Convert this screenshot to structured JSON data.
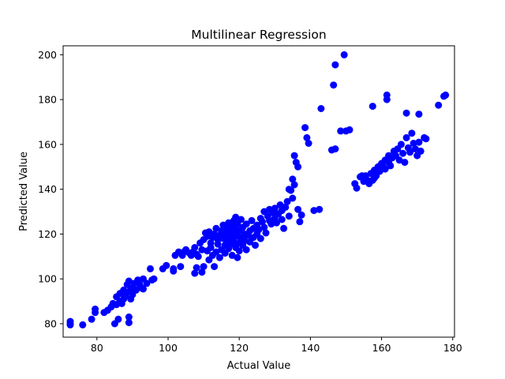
{
  "chart_data": {
    "type": "scatter",
    "title": "Multilinear Regression",
    "xlabel": "Actual Value",
    "ylabel": "Predicted Value",
    "xlim": [
      70.5,
      180.5
    ],
    "ylim": [
      74,
      204
    ],
    "xticks": [
      80,
      100,
      120,
      140,
      160,
      180
    ],
    "yticks": [
      80,
      100,
      120,
      140,
      160,
      180,
      200
    ],
    "grid": false,
    "legend": "none",
    "marker_color": "#0000ff",
    "series": [
      {
        "points": [
          [
            72.5,
            80
          ],
          [
            72.5,
            81
          ],
          [
            72.5,
            79.5
          ],
          [
            76,
            79.5
          ],
          [
            78.5,
            82
          ],
          [
            79.5,
            85
          ],
          [
            79.5,
            86.5
          ],
          [
            82,
            85
          ],
          [
            83,
            86
          ],
          [
            84,
            87.5
          ],
          [
            84.5,
            89
          ],
          [
            85,
            80
          ],
          [
            85.5,
            88.5
          ],
          [
            85.5,
            92
          ],
          [
            86,
            82
          ],
          [
            86.5,
            90
          ],
          [
            86.5,
            93.5
          ],
          [
            87,
            89
          ],
          [
            87.5,
            91
          ],
          [
            87.5,
            95
          ],
          [
            88,
            92.5
          ],
          [
            88.5,
            94
          ],
          [
            88.5,
            97.5
          ],
          [
            89,
            83
          ],
          [
            89,
            80.5
          ],
          [
            89,
            99
          ],
          [
            89.5,
            95.5
          ],
          [
            89.5,
            91
          ],
          [
            90,
            96
          ],
          [
            90,
            93
          ],
          [
            90.5,
            98
          ],
          [
            91,
            95
          ],
          [
            91.5,
            99.5
          ],
          [
            92,
            97.5
          ],
          [
            92.5,
            96
          ],
          [
            93,
            100
          ],
          [
            93,
            95.5
          ],
          [
            94,
            98
          ],
          [
            95,
            104.5
          ],
          [
            95.5,
            99.5
          ],
          [
            96,
            100
          ],
          [
            98.5,
            104.5
          ],
          [
            99.5,
            106
          ],
          [
            101.5,
            104.5
          ],
          [
            101.5,
            103.5
          ],
          [
            102,
            110.5
          ],
          [
            103,
            112
          ],
          [
            103.5,
            105.5
          ],
          [
            104,
            110.5
          ],
          [
            104.5,
            112
          ],
          [
            105,
            113
          ],
          [
            106,
            111.5
          ],
          [
            106.5,
            110.5
          ],
          [
            107,
            112
          ],
          [
            107.5,
            114
          ],
          [
            107.5,
            102.5
          ],
          [
            108,
            105
          ],
          [
            108,
            111
          ],
          [
            108.5,
            110
          ],
          [
            109,
            116
          ],
          [
            109.5,
            113
          ],
          [
            109.5,
            103
          ],
          [
            110,
            105.5
          ],
          [
            110,
            117.5
          ],
          [
            110.5,
            120.5
          ],
          [
            111,
            112.5
          ],
          [
            111,
            119
          ],
          [
            111.5,
            108.5
          ],
          [
            111.5,
            121
          ],
          [
            112,
            114
          ],
          [
            112,
            116
          ],
          [
            112.5,
            110.5
          ],
          [
            112.5,
            118.5
          ],
          [
            113,
            120
          ],
          [
            113,
            105.5
          ],
          [
            113.5,
            112
          ],
          [
            113.5,
            122.5
          ],
          [
            114,
            115.5
          ],
          [
            114,
            117.5
          ],
          [
            114.5,
            109.5
          ],
          [
            114.5,
            119.5
          ],
          [
            115,
            121.5
          ],
          [
            115,
            113
          ],
          [
            115.5,
            124
          ],
          [
            115.5,
            118
          ],
          [
            116,
            115
          ],
          [
            116,
            111.5
          ],
          [
            116,
            120.5
          ],
          [
            116.5,
            123
          ],
          [
            116.5,
            117
          ],
          [
            117,
            125
          ],
          [
            117,
            113.5
          ],
          [
            117,
            119
          ],
          [
            117.5,
            121
          ],
          [
            117.5,
            115.5
          ],
          [
            118,
            118
          ],
          [
            118,
            123.5
          ],
          [
            118,
            110.5
          ],
          [
            118.5,
            126
          ],
          [
            118.5,
            116.5
          ],
          [
            118.5,
            120
          ],
          [
            119,
            122
          ],
          [
            119,
            114
          ],
          [
            119,
            127.5
          ],
          [
            119.5,
            119
          ],
          [
            119.5,
            124.5
          ],
          [
            119.5,
            109.5
          ],
          [
            120,
            121.5
          ],
          [
            120,
            116
          ],
          [
            120,
            112.5
          ],
          [
            120.5,
            126.5
          ],
          [
            120.5,
            118.5
          ],
          [
            121,
            123
          ],
          [
            121,
            115
          ],
          [
            121.5,
            120
          ],
          [
            121.5,
            117
          ],
          [
            122,
            124.5
          ],
          [
            122,
            113
          ],
          [
            122.5,
            119.5
          ],
          [
            123,
            121.5
          ],
          [
            123,
            116.5
          ],
          [
            123.5,
            126
          ],
          [
            124,
            118.5
          ],
          [
            124,
            122.5
          ],
          [
            124.5,
            115
          ],
          [
            125,
            120
          ],
          [
            125,
            124
          ],
          [
            125.5,
            122
          ],
          [
            126,
            127
          ],
          [
            126,
            118
          ],
          [
            126.5,
            125.5
          ],
          [
            127,
            123
          ],
          [
            127,
            130
          ],
          [
            127.5,
            120.5
          ],
          [
            128,
            128
          ],
          [
            128.5,
            126
          ],
          [
            128.5,
            131
          ],
          [
            129,
            124.5
          ],
          [
            129.5,
            129.5
          ],
          [
            130,
            127
          ],
          [
            130,
            131.5
          ],
          [
            130.5,
            125
          ],
          [
            131,
            129
          ],
          [
            131.5,
            133
          ],
          [
            132,
            130.5
          ],
          [
            132,
            126.5
          ],
          [
            132.5,
            122.5
          ],
          [
            133,
            132
          ],
          [
            133.5,
            134.5
          ],
          [
            134,
            128
          ],
          [
            134,
            140
          ],
          [
            134.5,
            139.5
          ],
          [
            135,
            136
          ],
          [
            135,
            144.5
          ],
          [
            135.5,
            155
          ],
          [
            135.5,
            142
          ],
          [
            136,
            152
          ],
          [
            136.5,
            150
          ],
          [
            136.5,
            131
          ],
          [
            137,
            125.5
          ],
          [
            137.5,
            128.5
          ],
          [
            138.5,
            167.5
          ],
          [
            139,
            163
          ],
          [
            139.5,
            160.5
          ],
          [
            141,
            130.5
          ],
          [
            142.5,
            131
          ],
          [
            143,
            176
          ],
          [
            146,
            157.5
          ],
          [
            146.5,
            186.5
          ],
          [
            147,
            158
          ],
          [
            147,
            195.5
          ],
          [
            148.5,
            166
          ],
          [
            149.5,
            200
          ],
          [
            150,
            166
          ],
          [
            151,
            166.5
          ],
          [
            152.5,
            142.5
          ],
          [
            153,
            140.5
          ],
          [
            154,
            145.5
          ],
          [
            154.5,
            146
          ],
          [
            155,
            143.5
          ],
          [
            155.5,
            146
          ],
          [
            156,
            144
          ],
          [
            156.5,
            142.5
          ],
          [
            157,
            147
          ],
          [
            157.5,
            144
          ],
          [
            157.5,
            177
          ],
          [
            158,
            148.5
          ],
          [
            158,
            145
          ],
          [
            158.5,
            146
          ],
          [
            159,
            150
          ],
          [
            159.5,
            148
          ],
          [
            160,
            151.5
          ],
          [
            160.5,
            150
          ],
          [
            161,
            153
          ],
          [
            161,
            149
          ],
          [
            161.5,
            180
          ],
          [
            161.5,
            182
          ],
          [
            162,
            155
          ],
          [
            162,
            152
          ],
          [
            162.5,
            150.5
          ],
          [
            163,
            154
          ],
          [
            163.5,
            157
          ],
          [
            164,
            155
          ],
          [
            164.5,
            158
          ],
          [
            165,
            153
          ],
          [
            165.5,
            160
          ],
          [
            166,
            156
          ],
          [
            166.5,
            152
          ],
          [
            167,
            174
          ],
          [
            167,
            163
          ],
          [
            167.5,
            158.5
          ],
          [
            168,
            156.5
          ],
          [
            168.5,
            165
          ],
          [
            169,
            160.5
          ],
          [
            169.5,
            158
          ],
          [
            170,
            155
          ],
          [
            170.5,
            161
          ],
          [
            170.5,
            173.5
          ],
          [
            171,
            157
          ],
          [
            172,
            163
          ],
          [
            172.5,
            162.5
          ],
          [
            176,
            177.5
          ],
          [
            177.5,
            181.5
          ],
          [
            178,
            182
          ]
        ]
      }
    ]
  }
}
